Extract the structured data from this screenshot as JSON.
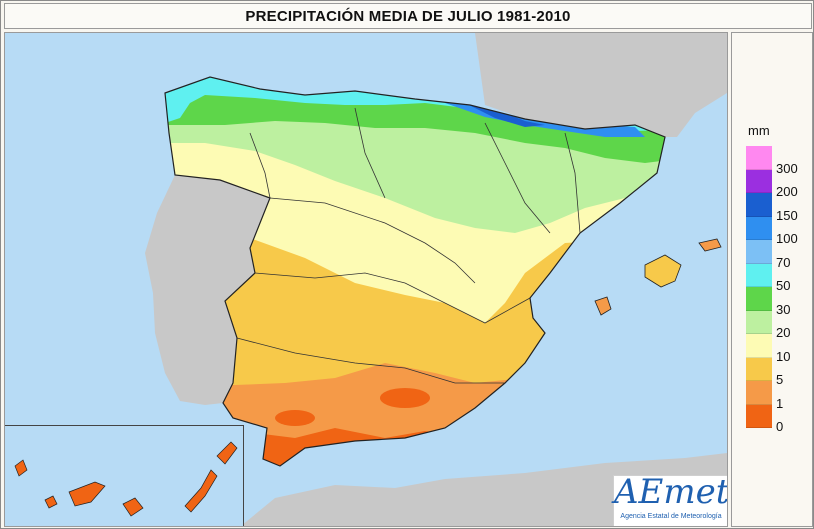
{
  "title": "PRECIPITACIÓN MEDIA DE JULIO 1981-2010",
  "legend": {
    "unit": "mm",
    "classes": [
      {
        "label": "300",
        "color": "#ff88f0"
      },
      {
        "label": "200",
        "color": "#9b2fe0"
      },
      {
        "label": "150",
        "color": "#1a5fd0"
      },
      {
        "label": "100",
        "color": "#2f8ff0"
      },
      {
        "label": "70",
        "color": "#7cc0f5"
      },
      {
        "label": "50",
        "color": "#5ff0f0"
      },
      {
        "label": "30",
        "color": "#5ed64a"
      },
      {
        "label": "20",
        "color": "#bdf0a0"
      },
      {
        "label": "10",
        "color": "#fdfbb4"
      },
      {
        "label": "5",
        "color": "#f7c94a"
      },
      {
        "label": "1",
        "color": "#f59a48"
      },
      {
        "label": "0",
        "color": "#f06414"
      }
    ]
  },
  "map": {
    "sea_color": "#b7dbf5",
    "land_outside_color": "#c8c8c8",
    "border_color": "#222222"
  },
  "logo": {
    "text": "AEmet",
    "subtitle": "Agencia Estatal de Meteorología"
  }
}
